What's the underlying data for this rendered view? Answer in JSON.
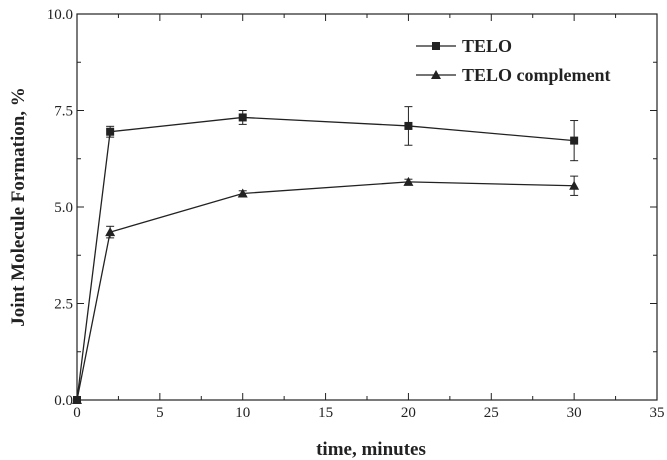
{
  "chart_data": {
    "type": "line",
    "title": "",
    "xlabel": "time, minutes",
    "ylabel": "Joint Molecule Formation, %",
    "xlim": [
      0,
      35
    ],
    "ylim": [
      0,
      10
    ],
    "x_ticks": [
      0,
      5,
      10,
      15,
      20,
      25,
      30,
      35
    ],
    "x_tick_labels": [
      "0",
      "5",
      "10",
      "15",
      "20",
      "25",
      "30",
      "35"
    ],
    "y_ticks": [
      0,
      2.5,
      5,
      7.5,
      10
    ],
    "y_tick_labels": [
      "0.0",
      "2.5",
      "5.0",
      "7.5",
      "10.0"
    ],
    "grid": false,
    "legend_position": "top-right",
    "series": [
      {
        "name": "TELO",
        "marker": "square",
        "color": "#222222",
        "x": [
          0,
          2,
          10,
          20,
          30
        ],
        "y": [
          0,
          6.95,
          7.32,
          7.1,
          6.72
        ],
        "error": [
          0,
          0.14,
          0.18,
          0.5,
          0.52
        ]
      },
      {
        "name": "TELO complement",
        "marker": "triangle",
        "color": "#222222",
        "x": [
          0,
          2,
          10,
          20,
          30
        ],
        "y": [
          0,
          4.35,
          5.35,
          5.65,
          5.55
        ],
        "error": [
          0,
          0.15,
          0.07,
          0.07,
          0.25
        ]
      }
    ]
  }
}
